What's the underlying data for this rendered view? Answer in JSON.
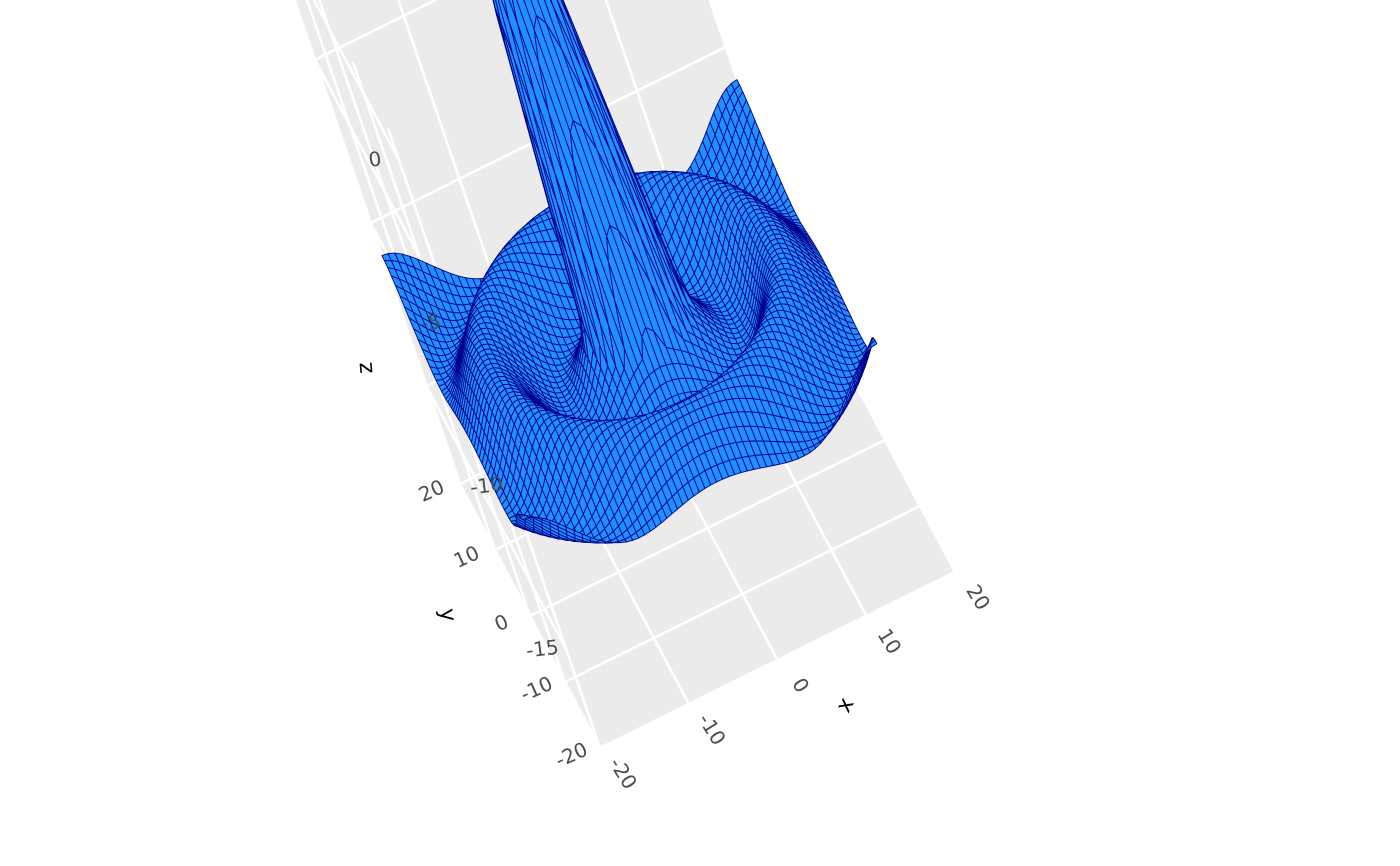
{
  "chart_data": {
    "type": "surface3d",
    "x": {
      "label": "x",
      "range": [
        -20,
        20
      ],
      "ticks": [
        -20,
        -10,
        0,
        10,
        20
      ],
      "tick_labels": [
        "-20",
        "-10",
        "0",
        "10",
        "20"
      ]
    },
    "y": {
      "label": "y",
      "range": [
        -20,
        20
      ],
      "ticks": [
        -20,
        -10,
        0,
        10,
        20
      ],
      "tick_labels": [
        "-20",
        "-10",
        "0",
        "10",
        "20"
      ]
    },
    "z": {
      "label": "z",
      "range": [
        -18,
        1
      ],
      "ticks": [
        -15,
        -10,
        -5,
        0
      ],
      "tick_labels": [
        "-15",
        "-10",
        "-5",
        "0"
      ]
    },
    "surface": {
      "grid_points": 61,
      "peak": {
        "x": 0,
        "y": 0,
        "z": 0
      },
      "description": "Central sharp peak at origin with ring-like undulating ridges decaying toward the edges",
      "fill_color": "#1e90ff",
      "edge_color": "#00008b"
    },
    "background_color": "#ebebeb",
    "grid": true
  }
}
